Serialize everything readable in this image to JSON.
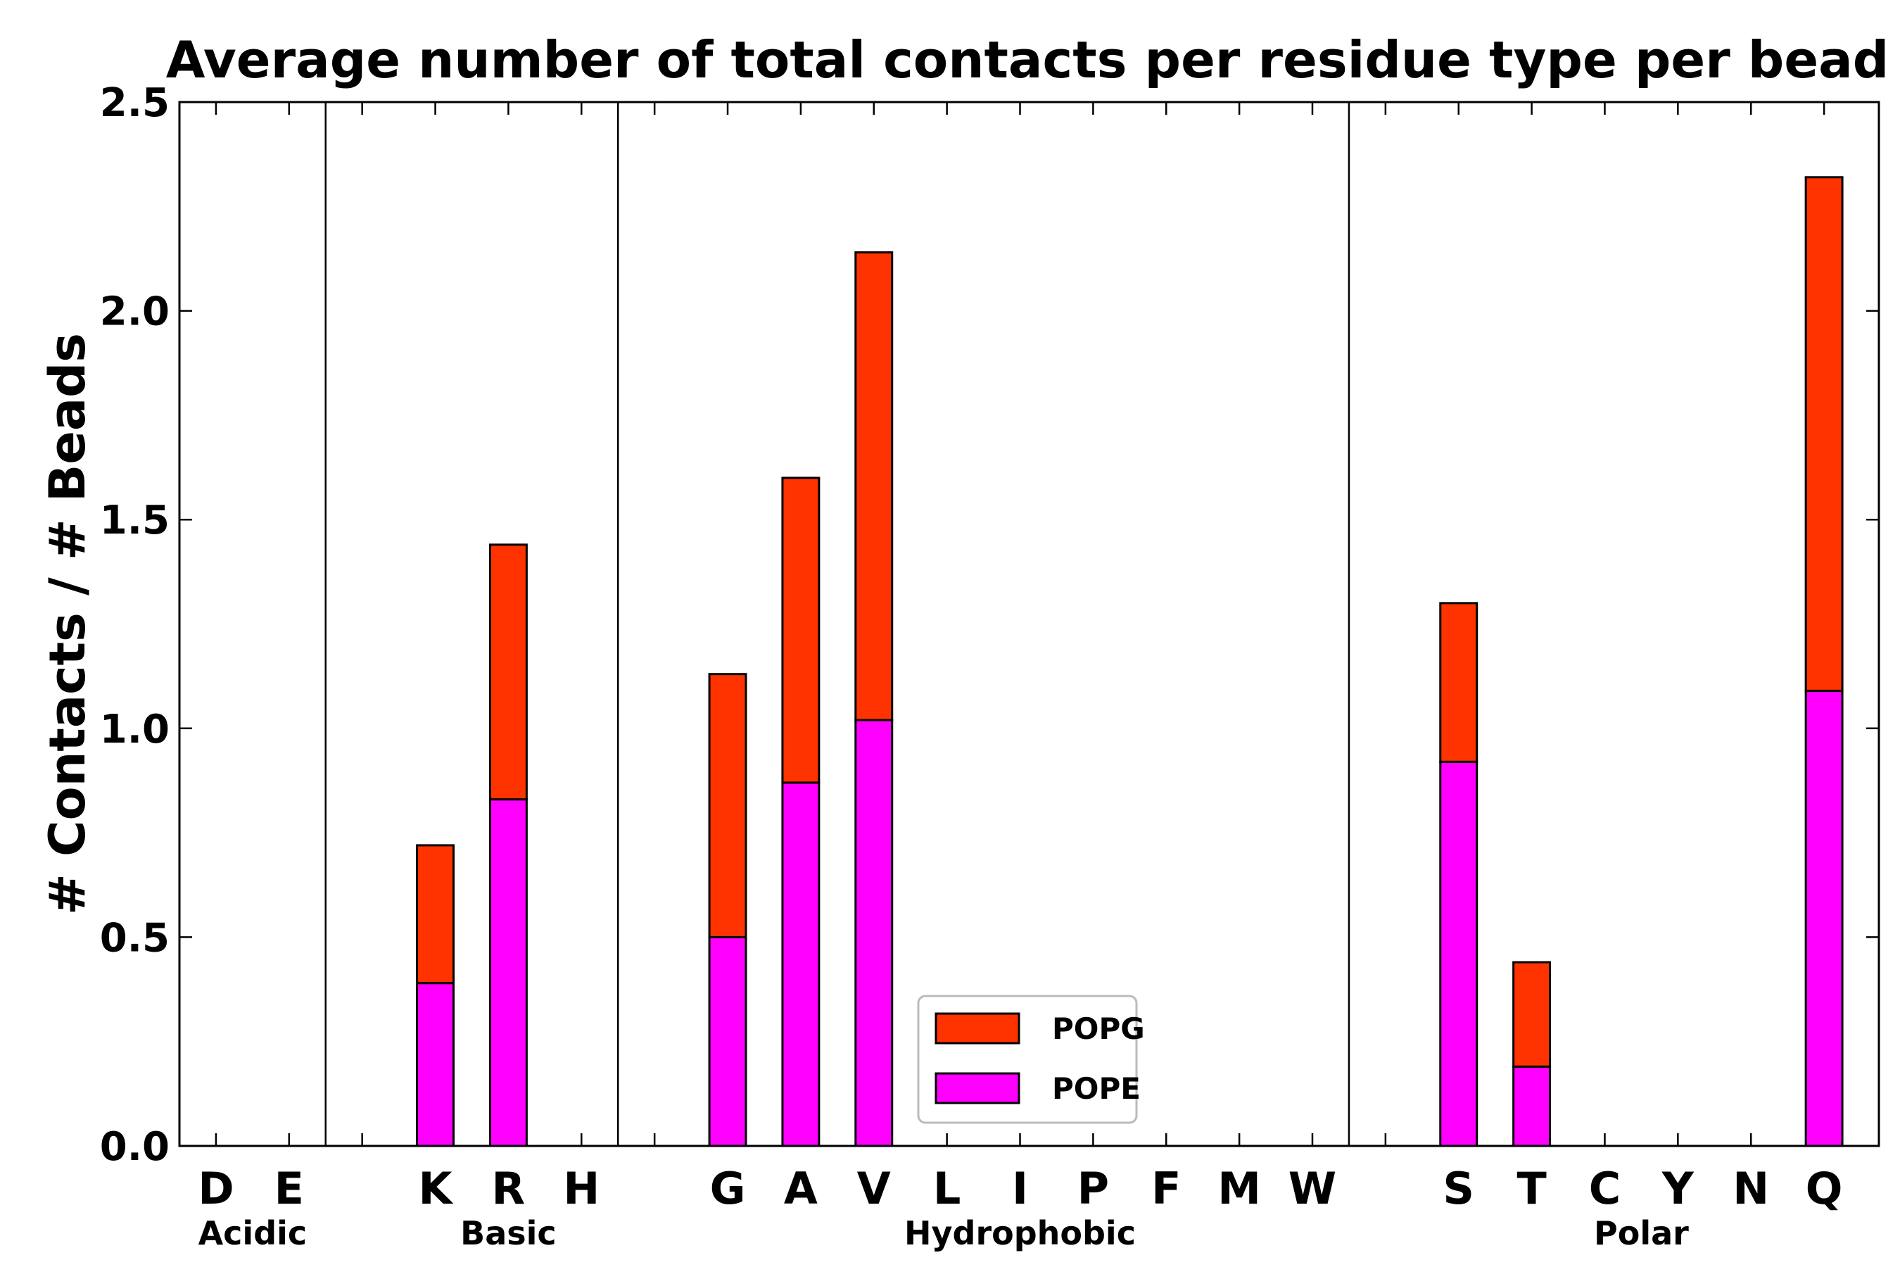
{
  "chart_data": {
    "type": "bar",
    "stacked": true,
    "title": "Average number of total contacts per residue type per bead",
    "xlabel": "",
    "ylabel": "# Contacts / # Beads",
    "ylim": [
      0,
      2.5
    ],
    "yticks": [
      "0.0",
      "0.5",
      "1.0",
      "1.5",
      "2.0",
      "2.5"
    ],
    "categories": [
      "D",
      "E",
      "",
      "K",
      "R",
      "H",
      "",
      "G",
      "A",
      "V",
      "L",
      "I",
      "P",
      "F",
      "M",
      "W",
      "",
      "S",
      "T",
      "C",
      "Y",
      "N",
      "Q"
    ],
    "groups": [
      {
        "name": "Acidic",
        "start": 0,
        "end": 1
      },
      {
        "name": "Basic",
        "start": 3,
        "end": 5
      },
      {
        "name": "Hydrophobic",
        "start": 7,
        "end": 15
      },
      {
        "name": "Polar",
        "start": 17,
        "end": 22
      }
    ],
    "separators_after": [
      1.5,
      5.5,
      15.5
    ],
    "series": [
      {
        "name": "POPE",
        "color": "#ff00ff",
        "values": [
          0,
          0,
          0,
          0.39,
          0.83,
          0,
          0,
          0.5,
          0.87,
          1.02,
          0,
          0,
          0,
          0,
          0,
          0,
          0,
          0.92,
          0.19,
          0,
          0,
          0,
          1.09
        ]
      },
      {
        "name": "POPG",
        "color": "#ff3300",
        "values": [
          0,
          0,
          0,
          0.33,
          0.61,
          0,
          0,
          0.63,
          0.73,
          1.12,
          0,
          0,
          0,
          0,
          0,
          0,
          0,
          0.38,
          0.25,
          0,
          0,
          0,
          1.23
        ]
      }
    ],
    "legend": {
      "position": "bottom-center",
      "order": [
        "POPG",
        "POPE"
      ]
    },
    "grid": false
  }
}
